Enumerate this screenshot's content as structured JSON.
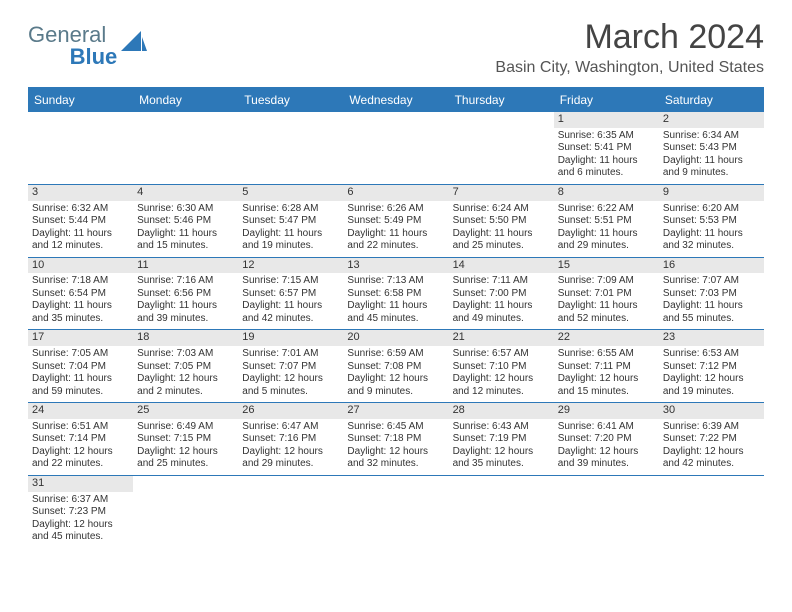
{
  "logo": {
    "general": "General",
    "blue": "Blue"
  },
  "title": "March 2024",
  "location": "Basin City, Washington, United States",
  "colors": {
    "header_bg": "#2d78b8",
    "header_text": "#ffffff",
    "row_border": "#2d78b8",
    "daynum_bg": "#e8e8e8",
    "text": "#333333",
    "logo_gray": "#5a7a8a",
    "logo_blue": "#2d78b8"
  },
  "weekdays": [
    "Sunday",
    "Monday",
    "Tuesday",
    "Wednesday",
    "Thursday",
    "Friday",
    "Saturday"
  ],
  "weeks": [
    [
      {
        "blank": true
      },
      {
        "blank": true
      },
      {
        "blank": true
      },
      {
        "blank": true
      },
      {
        "blank": true
      },
      {
        "num": "1",
        "sunrise": "Sunrise: 6:35 AM",
        "sunset": "Sunset: 5:41 PM",
        "day1": "Daylight: 11 hours",
        "day2": "and 6 minutes."
      },
      {
        "num": "2",
        "sunrise": "Sunrise: 6:34 AM",
        "sunset": "Sunset: 5:43 PM",
        "day1": "Daylight: 11 hours",
        "day2": "and 9 minutes."
      }
    ],
    [
      {
        "num": "3",
        "sunrise": "Sunrise: 6:32 AM",
        "sunset": "Sunset: 5:44 PM",
        "day1": "Daylight: 11 hours",
        "day2": "and 12 minutes."
      },
      {
        "num": "4",
        "sunrise": "Sunrise: 6:30 AM",
        "sunset": "Sunset: 5:46 PM",
        "day1": "Daylight: 11 hours",
        "day2": "and 15 minutes."
      },
      {
        "num": "5",
        "sunrise": "Sunrise: 6:28 AM",
        "sunset": "Sunset: 5:47 PM",
        "day1": "Daylight: 11 hours",
        "day2": "and 19 minutes."
      },
      {
        "num": "6",
        "sunrise": "Sunrise: 6:26 AM",
        "sunset": "Sunset: 5:49 PM",
        "day1": "Daylight: 11 hours",
        "day2": "and 22 minutes."
      },
      {
        "num": "7",
        "sunrise": "Sunrise: 6:24 AM",
        "sunset": "Sunset: 5:50 PM",
        "day1": "Daylight: 11 hours",
        "day2": "and 25 minutes."
      },
      {
        "num": "8",
        "sunrise": "Sunrise: 6:22 AM",
        "sunset": "Sunset: 5:51 PM",
        "day1": "Daylight: 11 hours",
        "day2": "and 29 minutes."
      },
      {
        "num": "9",
        "sunrise": "Sunrise: 6:20 AM",
        "sunset": "Sunset: 5:53 PM",
        "day1": "Daylight: 11 hours",
        "day2": "and 32 minutes."
      }
    ],
    [
      {
        "num": "10",
        "sunrise": "Sunrise: 7:18 AM",
        "sunset": "Sunset: 6:54 PM",
        "day1": "Daylight: 11 hours",
        "day2": "and 35 minutes."
      },
      {
        "num": "11",
        "sunrise": "Sunrise: 7:16 AM",
        "sunset": "Sunset: 6:56 PM",
        "day1": "Daylight: 11 hours",
        "day2": "and 39 minutes."
      },
      {
        "num": "12",
        "sunrise": "Sunrise: 7:15 AM",
        "sunset": "Sunset: 6:57 PM",
        "day1": "Daylight: 11 hours",
        "day2": "and 42 minutes."
      },
      {
        "num": "13",
        "sunrise": "Sunrise: 7:13 AM",
        "sunset": "Sunset: 6:58 PM",
        "day1": "Daylight: 11 hours",
        "day2": "and 45 minutes."
      },
      {
        "num": "14",
        "sunrise": "Sunrise: 7:11 AM",
        "sunset": "Sunset: 7:00 PM",
        "day1": "Daylight: 11 hours",
        "day2": "and 49 minutes."
      },
      {
        "num": "15",
        "sunrise": "Sunrise: 7:09 AM",
        "sunset": "Sunset: 7:01 PM",
        "day1": "Daylight: 11 hours",
        "day2": "and 52 minutes."
      },
      {
        "num": "16",
        "sunrise": "Sunrise: 7:07 AM",
        "sunset": "Sunset: 7:03 PM",
        "day1": "Daylight: 11 hours",
        "day2": "and 55 minutes."
      }
    ],
    [
      {
        "num": "17",
        "sunrise": "Sunrise: 7:05 AM",
        "sunset": "Sunset: 7:04 PM",
        "day1": "Daylight: 11 hours",
        "day2": "and 59 minutes."
      },
      {
        "num": "18",
        "sunrise": "Sunrise: 7:03 AM",
        "sunset": "Sunset: 7:05 PM",
        "day1": "Daylight: 12 hours",
        "day2": "and 2 minutes."
      },
      {
        "num": "19",
        "sunrise": "Sunrise: 7:01 AM",
        "sunset": "Sunset: 7:07 PM",
        "day1": "Daylight: 12 hours",
        "day2": "and 5 minutes."
      },
      {
        "num": "20",
        "sunrise": "Sunrise: 6:59 AM",
        "sunset": "Sunset: 7:08 PM",
        "day1": "Daylight: 12 hours",
        "day2": "and 9 minutes."
      },
      {
        "num": "21",
        "sunrise": "Sunrise: 6:57 AM",
        "sunset": "Sunset: 7:10 PM",
        "day1": "Daylight: 12 hours",
        "day2": "and 12 minutes."
      },
      {
        "num": "22",
        "sunrise": "Sunrise: 6:55 AM",
        "sunset": "Sunset: 7:11 PM",
        "day1": "Daylight: 12 hours",
        "day2": "and 15 minutes."
      },
      {
        "num": "23",
        "sunrise": "Sunrise: 6:53 AM",
        "sunset": "Sunset: 7:12 PM",
        "day1": "Daylight: 12 hours",
        "day2": "and 19 minutes."
      }
    ],
    [
      {
        "num": "24",
        "sunrise": "Sunrise: 6:51 AM",
        "sunset": "Sunset: 7:14 PM",
        "day1": "Daylight: 12 hours",
        "day2": "and 22 minutes."
      },
      {
        "num": "25",
        "sunrise": "Sunrise: 6:49 AM",
        "sunset": "Sunset: 7:15 PM",
        "day1": "Daylight: 12 hours",
        "day2": "and 25 minutes."
      },
      {
        "num": "26",
        "sunrise": "Sunrise: 6:47 AM",
        "sunset": "Sunset: 7:16 PM",
        "day1": "Daylight: 12 hours",
        "day2": "and 29 minutes."
      },
      {
        "num": "27",
        "sunrise": "Sunrise: 6:45 AM",
        "sunset": "Sunset: 7:18 PM",
        "day1": "Daylight: 12 hours",
        "day2": "and 32 minutes."
      },
      {
        "num": "28",
        "sunrise": "Sunrise: 6:43 AM",
        "sunset": "Sunset: 7:19 PM",
        "day1": "Daylight: 12 hours",
        "day2": "and 35 minutes."
      },
      {
        "num": "29",
        "sunrise": "Sunrise: 6:41 AM",
        "sunset": "Sunset: 7:20 PM",
        "day1": "Daylight: 12 hours",
        "day2": "and 39 minutes."
      },
      {
        "num": "30",
        "sunrise": "Sunrise: 6:39 AM",
        "sunset": "Sunset: 7:22 PM",
        "day1": "Daylight: 12 hours",
        "day2": "and 42 minutes."
      }
    ],
    [
      {
        "num": "31",
        "sunrise": "Sunrise: 6:37 AM",
        "sunset": "Sunset: 7:23 PM",
        "day1": "Daylight: 12 hours",
        "day2": "and 45 minutes."
      },
      {
        "blank": true
      },
      {
        "blank": true
      },
      {
        "blank": true
      },
      {
        "blank": true
      },
      {
        "blank": true
      },
      {
        "blank": true
      }
    ]
  ]
}
